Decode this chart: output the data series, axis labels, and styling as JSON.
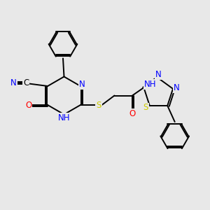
{
  "background_color": "#e8e8e8",
  "atom_colors": {
    "C": "#000000",
    "N": "#0000FF",
    "O": "#FF0000",
    "S": "#CCCC00",
    "H": "#7a9aad"
  },
  "bond_color": "#000000",
  "font_size": 8.5,
  "lw": 1.4
}
